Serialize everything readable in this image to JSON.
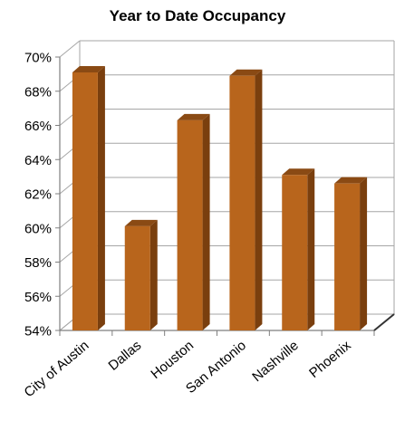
{
  "chart_data": {
    "type": "bar",
    "title": "Year to Date Occupancy",
    "categories": [
      "City of Austin",
      "Dallas",
      "Houston",
      "San Antonio",
      "Nashville",
      "Phoenix"
    ],
    "values": [
      69.1,
      60.1,
      66.3,
      68.9,
      63.1,
      62.6
    ],
    "value_unit": "%",
    "ylim": [
      54,
      70
    ],
    "yticks": [
      "70%",
      "68%",
      "66%",
      "64%",
      "62%",
      "60%",
      "58%",
      "56%",
      "54%"
    ],
    "yticks_values": [
      70,
      68,
      66,
      64,
      62,
      60,
      58,
      56,
      54
    ],
    "grid": true,
    "legend": "none",
    "style": "3d-column",
    "colors": {
      "bar_front": "#b8651c",
      "bar_side": "#7a3f0e",
      "bar_top": "#8a4a14",
      "grid": "#a6a6a6",
      "axis": "#7f7f7f",
      "text": "#000000"
    }
  }
}
